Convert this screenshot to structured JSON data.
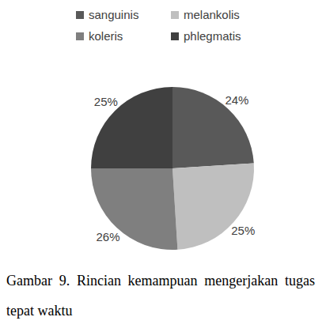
{
  "chart_data": {
    "type": "pie",
    "title": "Gambar 9. Rincian kemampuan mengerjakan tugas tepat waktu",
    "categories": [
      "sanguinis",
      "melankolis",
      "koleris",
      "phlegmatis"
    ],
    "values": [
      24,
      25,
      26,
      25
    ],
    "value_labels": [
      "24%",
      "25%",
      "26%",
      "25%"
    ],
    "colors": [
      "#595959",
      "#bfbfbf",
      "#7f7f7f",
      "#404040"
    ],
    "legend": "top",
    "data_labels": true
  }
}
